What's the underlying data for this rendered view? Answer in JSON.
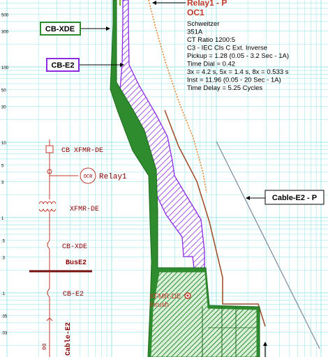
{
  "axis": {
    "y_ticks": [
      {
        "label": "500",
        "value": 500
      },
      {
        "label": "300",
        "value": 300
      },
      {
        "label": "100",
        "value": 100
      },
      {
        "label": "50",
        "value": 50
      },
      {
        "label": "30",
        "value": 30
      },
      {
        "label": "10",
        "value": 10
      },
      {
        "label": "5",
        "value": 5
      },
      {
        "label": "3",
        "value": 3
      },
      {
        "label": "1",
        "value": 1
      },
      {
        "label": ".5",
        "value": 0.5
      },
      {
        "label": ".3",
        "value": 0.3
      },
      {
        "label": ".1",
        "value": 0.1
      },
      {
        "label": ".05",
        "value": 0.05
      },
      {
        "label": ".03",
        "value": 0.03
      }
    ]
  },
  "relay": {
    "title": "Relay1 - P",
    "subtitle": "OC1",
    "lines": [
      "Schweitzer",
      "351A",
      "CT Ratio 1200:5",
      "C3 - IEC Cls C Ext. Inverse",
      "Pickup = 1.28 (0.05 - 3.2  Sec - 1A)",
      "Time Dial = 0.42",
      "3x = 4.2 s, 5x = 1.4 s, 8x = 0.533 s",
      "Inst = 11.96 (0.05 - 20  Sec - 1A)",
      "Time Delay = 5.25 Cycles"
    ]
  },
  "curve_labels": {
    "cb_xde": "CB-XDE",
    "cb_e2": "CB-E2",
    "cable_e2": "Cable-E2 - P",
    "inrush_1": "XFMR-DE",
    "inrush_2": "Inrush"
  },
  "one_line": {
    "cb_xfmr_de": "CB XFMR-DE",
    "relay1": "Relay1",
    "ocr": "OCR",
    "xfmr_de": "XFMR-DE",
    "cb_xde": "CB-XDE",
    "bus_e2": "BusE2",
    "cb_e2": "CB-E2",
    "cable_e2": "Cable-E2",
    "cable_marker": "00"
  },
  "colors": {
    "grid": "#9fe6ea",
    "green": "#2e8b2e",
    "purple": "#8a2be2",
    "relay_red": "#c0392b",
    "orange": "#e67e22",
    "brown": "#a0522d",
    "cable_gray": "#7a8a9a",
    "bus": "#7b1010"
  }
}
